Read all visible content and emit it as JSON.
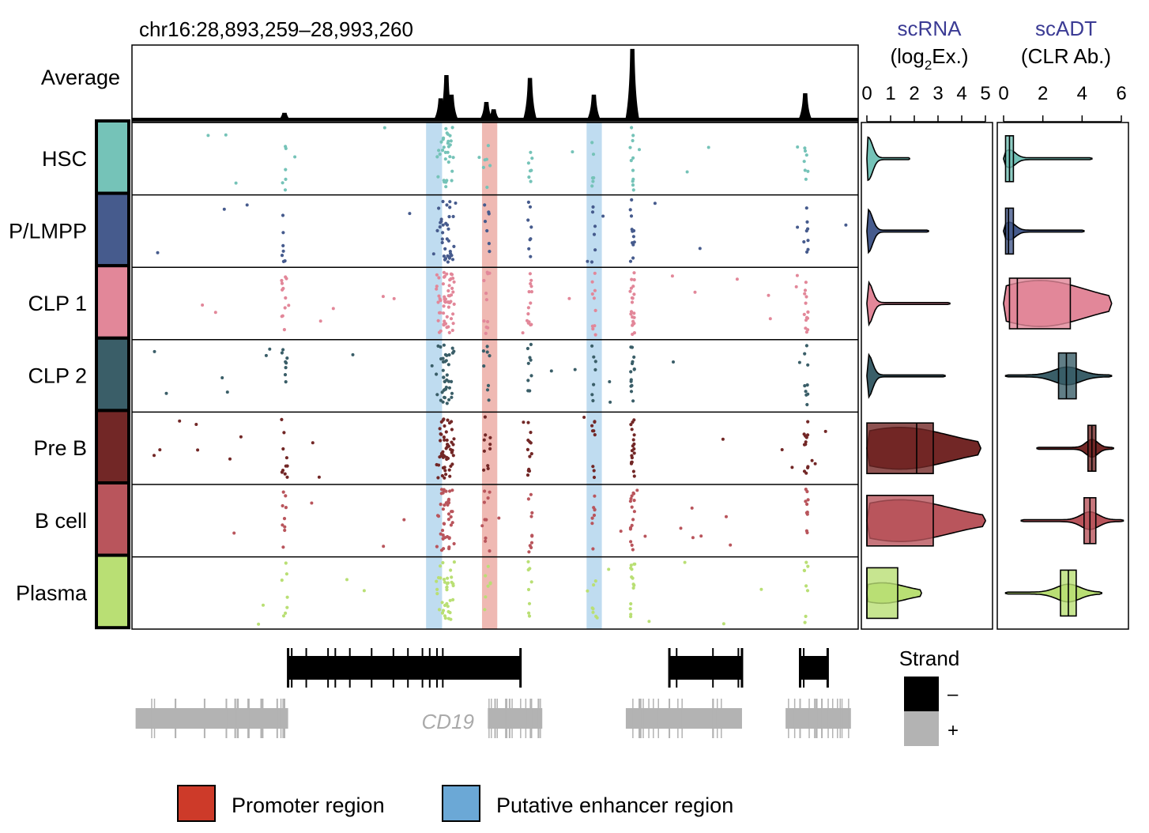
{
  "chart_data": {
    "type": "genome-track",
    "region_label": "chr16:28,893,259–28,993,260",
    "average_label": "Average",
    "cell_types": [
      {
        "name": "HSC",
        "color": "#75c3b8"
      },
      {
        "name": "P/LMPP",
        "color": "#465b8d"
      },
      {
        "name": "CLP 1",
        "color": "#e28799"
      },
      {
        "name": "CLP 2",
        "color": "#3a5e68"
      },
      {
        "name": "Pre B",
        "color": "#722726"
      },
      {
        "name": "B cell",
        "color": "#b9555c"
      },
      {
        "name": "Plasma",
        "color": "#b9df74"
      }
    ],
    "highlight_regions": [
      {
        "kind": "enhancer",
        "start": 0.405,
        "end": 0.427,
        "color": "#a9d0eb"
      },
      {
        "kind": "promoter",
        "start": 0.482,
        "end": 0.503,
        "color": "#e9a29a"
      },
      {
        "kind": "enhancer",
        "start": 0.626,
        "end": 0.647,
        "color": "#a9d0eb"
      }
    ],
    "coverage_peaks": [
      {
        "pos": 0.21,
        "height": 0.1
      },
      {
        "pos": 0.425,
        "height": 0.3
      },
      {
        "pos": 0.433,
        "height": 0.62
      },
      {
        "pos": 0.44,
        "height": 0.35
      },
      {
        "pos": 0.488,
        "height": 0.25
      },
      {
        "pos": 0.498,
        "height": 0.15
      },
      {
        "pos": 0.548,
        "height": 0.58
      },
      {
        "pos": 0.636,
        "height": 0.35
      },
      {
        "pos": 0.689,
        "height": 0.98
      },
      {
        "pos": 0.927,
        "height": 0.37
      }
    ],
    "scrna": {
      "title": "scRNA",
      "subtitle_pre": "(log",
      "subtitle_sub": "2",
      "subtitle_post": "Ex.)",
      "ticks": [
        "0",
        "1",
        "2",
        "3",
        "4",
        "5"
      ],
      "range": [
        0,
        5
      ],
      "per_type": [
        {
          "max": 1.8,
          "q1": 0,
          "q3": 0,
          "med": 0
        },
        {
          "max": 2.6,
          "q1": 0,
          "q3": 0,
          "med": 0
        },
        {
          "max": 3.5,
          "q1": 0,
          "q3": 0,
          "med": 0
        },
        {
          "max": 3.3,
          "q1": 0,
          "q3": 0,
          "med": 0
        },
        {
          "max": 4.8,
          "q1": 0,
          "q3": 2.8,
          "med": 2.1
        },
        {
          "max": 5.0,
          "q1": 0,
          "q3": 2.8,
          "med": 0
        },
        {
          "max": 2.3,
          "q1": 0,
          "q3": 1.3,
          "med": 0
        }
      ]
    },
    "scadt": {
      "title": "scADT",
      "subtitle": "(CLR Ab.)",
      "ticks": [
        "0",
        "2",
        "4",
        "6"
      ],
      "range": [
        0,
        6
      ],
      "per_type": [
        {
          "min": 0,
          "max": 4.5,
          "q1": 0.1,
          "q3": 0.5,
          "med": 0.3
        },
        {
          "min": 0,
          "max": 4.1,
          "q1": 0.1,
          "q3": 0.5,
          "med": 0.25
        },
        {
          "min": 0,
          "max": 5.5,
          "q1": 0.3,
          "q3": 3.4,
          "med": 0.7
        },
        {
          "min": 0.1,
          "max": 5.5,
          "q1": 2.8,
          "q3": 3.7,
          "med": 3.2
        },
        {
          "min": 1.7,
          "max": 5.6,
          "q1": 4.3,
          "q3": 4.7,
          "med": 4.5
        },
        {
          "min": 0.9,
          "max": 6.1,
          "q1": 4.1,
          "q3": 4.7,
          "med": 4.4
        },
        {
          "min": 0.1,
          "max": 5.0,
          "q1": 2.9,
          "q3": 3.7,
          "med": 3.3
        }
      ]
    },
    "genes": {
      "minus": [
        {
          "start": 0.215,
          "end": 0.535,
          "cuts": [
            0.22,
            0.24,
            0.27,
            0.28,
            0.3,
            0.33,
            0.36,
            0.38,
            0.4,
            0.41,
            0.42,
            0.428
          ]
        },
        {
          "start": 0.74,
          "end": 0.84,
          "cuts": [
            0.75,
            0.8,
            0.835
          ]
        },
        {
          "start": 0.92,
          "end": 0.958,
          "cuts": [
            0.925
          ]
        }
      ],
      "plus": [
        {
          "start": 0.005,
          "end": 0.215,
          "cuts": [
            0.06,
            0.1,
            0.13,
            0.16,
            0.18,
            0.2,
            0.21
          ]
        },
        {
          "start": 0.49,
          "end": 0.565,
          "cuts": [
            0.5,
            0.52,
            0.55
          ]
        },
        {
          "start": 0.68,
          "end": 0.84,
          "cuts": [
            0.7,
            0.74,
            0.8
          ]
        },
        {
          "start": 0.9,
          "end": 0.99,
          "cuts": [
            0.92,
            0.95
          ]
        }
      ],
      "gene_label": "CD19",
      "gene_label_pos": 0.435
    },
    "strand_legend": {
      "title": "Strand",
      "minus": "–",
      "plus": "+"
    },
    "legend": [
      {
        "label": "Promoter region",
        "color": "#cd3a29"
      },
      {
        "label": "Putative enhancer region",
        "color": "#6ba8d6"
      }
    ]
  }
}
